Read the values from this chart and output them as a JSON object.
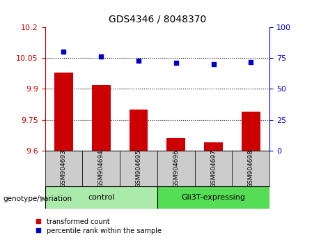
{
  "title": "GDS4346 / 8048370",
  "categories": [
    "GSM904693",
    "GSM904694",
    "GSM904695",
    "GSM904696",
    "GSM904697",
    "GSM904698"
  ],
  "bar_values": [
    9.98,
    9.92,
    9.8,
    9.66,
    9.64,
    9.79
  ],
  "scatter_values": [
    80,
    76,
    73,
    71,
    70,
    72
  ],
  "bar_color": "#cc0000",
  "scatter_color": "#0000cc",
  "ylim_left": [
    9.6,
    10.2
  ],
  "ylim_right": [
    0,
    100
  ],
  "yticks_left": [
    9.6,
    9.75,
    9.9,
    10.05,
    10.2
  ],
  "yticks_right": [
    0,
    25,
    50,
    75,
    100
  ],
  "hlines": [
    10.05,
    9.9,
    9.75
  ],
  "group1_label": "control",
  "group2_label": "Gli3T-expressing",
  "group1_indices": [
    0,
    1,
    2
  ],
  "group2_indices": [
    3,
    4,
    5
  ],
  "group_color1": "#aaeaaa",
  "group_color2": "#55dd55",
  "genotype_label": "genotype/variation",
  "legend1": "transformed count",
  "legend2": "percentile rank within the sample",
  "bar_bottom": 9.6,
  "xlabel_bg_color": "#cccccc"
}
